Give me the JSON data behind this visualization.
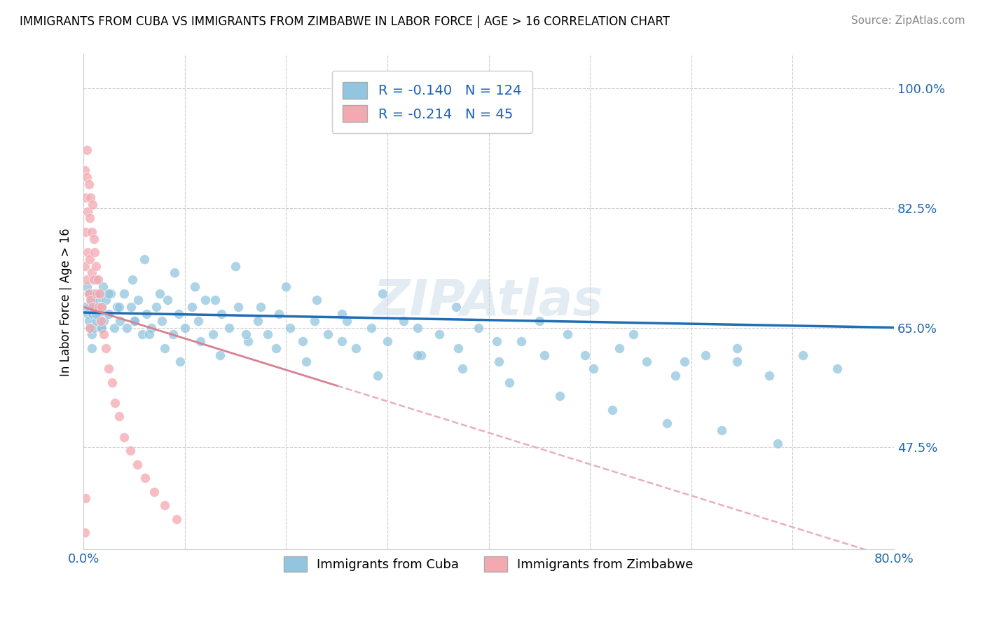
{
  "title": "IMMIGRANTS FROM CUBA VS IMMIGRANTS FROM ZIMBABWE IN LABOR FORCE | AGE > 16 CORRELATION CHART",
  "source": "Source: ZipAtlas.com",
  "ylabel": "In Labor Force | Age > 16",
  "cuba_R": -0.14,
  "cuba_N": 124,
  "zimbabwe_R": -0.214,
  "zimbabwe_N": 45,
  "cuba_color": "#92c5de",
  "zimbabwe_color": "#f4a9b0",
  "trend_cuba_color": "#1f6db5",
  "trend_zimbabwe_color": "#d88090",
  "trend_zimbabwe_dashed_color": "#e8b0bc",
  "xlim": [
    0.0,
    0.8
  ],
  "ylim": [
    0.325,
    1.05
  ],
  "yticks": [
    0.475,
    0.65,
    0.825,
    1.0
  ],
  "ytick_labels": [
    "47.5%",
    "65.0%",
    "82.5%",
    "100.0%"
  ],
  "background_color": "#ffffff",
  "watermark": "ZIPAtlas",
  "cuba_x": [
    0.002,
    0.003,
    0.004,
    0.005,
    0.005,
    0.006,
    0.007,
    0.007,
    0.008,
    0.008,
    0.009,
    0.01,
    0.01,
    0.011,
    0.012,
    0.013,
    0.014,
    0.015,
    0.016,
    0.017,
    0.018,
    0.019,
    0.02,
    0.022,
    0.025,
    0.027,
    0.03,
    0.033,
    0.036,
    0.04,
    0.043,
    0.047,
    0.05,
    0.054,
    0.058,
    0.062,
    0.067,
    0.072,
    0.077,
    0.083,
    0.088,
    0.094,
    0.1,
    0.107,
    0.113,
    0.12,
    0.128,
    0.136,
    0.144,
    0.153,
    0.162,
    0.172,
    0.182,
    0.193,
    0.204,
    0.216,
    0.228,
    0.241,
    0.255,
    0.269,
    0.284,
    0.3,
    0.316,
    0.333,
    0.351,
    0.37,
    0.39,
    0.41,
    0.432,
    0.455,
    0.478,
    0.503,
    0.529,
    0.556,
    0.584,
    0.614,
    0.645,
    0.677,
    0.71,
    0.744,
    0.048,
    0.06,
    0.075,
    0.09,
    0.11,
    0.13,
    0.15,
    0.175,
    0.2,
    0.23,
    0.26,
    0.295,
    0.33,
    0.368,
    0.408,
    0.45,
    0.495,
    0.543,
    0.593,
    0.645,
    0.008,
    0.012,
    0.018,
    0.025,
    0.035,
    0.05,
    0.065,
    0.08,
    0.095,
    0.115,
    0.135,
    0.16,
    0.19,
    0.22,
    0.255,
    0.29,
    0.33,
    0.374,
    0.42,
    0.47,
    0.522,
    0.576,
    0.63,
    0.685
  ],
  "cuba_y": [
    0.68,
    0.71,
    0.67,
    0.7,
    0.66,
    0.68,
    0.7,
    0.65,
    0.69,
    0.64,
    0.67,
    0.7,
    0.65,
    0.68,
    0.72,
    0.66,
    0.69,
    0.67,
    0.7,
    0.65,
    0.68,
    0.71,
    0.66,
    0.69,
    0.67,
    0.7,
    0.65,
    0.68,
    0.66,
    0.7,
    0.65,
    0.68,
    0.66,
    0.69,
    0.64,
    0.67,
    0.65,
    0.68,
    0.66,
    0.69,
    0.64,
    0.67,
    0.65,
    0.68,
    0.66,
    0.69,
    0.64,
    0.67,
    0.65,
    0.68,
    0.63,
    0.66,
    0.64,
    0.67,
    0.65,
    0.63,
    0.66,
    0.64,
    0.67,
    0.62,
    0.65,
    0.63,
    0.66,
    0.61,
    0.64,
    0.62,
    0.65,
    0.6,
    0.63,
    0.61,
    0.64,
    0.59,
    0.62,
    0.6,
    0.58,
    0.61,
    0.6,
    0.58,
    0.61,
    0.59,
    0.72,
    0.75,
    0.7,
    0.73,
    0.71,
    0.69,
    0.74,
    0.68,
    0.71,
    0.69,
    0.66,
    0.7,
    0.65,
    0.68,
    0.63,
    0.66,
    0.61,
    0.64,
    0.6,
    0.62,
    0.62,
    0.67,
    0.65,
    0.7,
    0.68,
    0.66,
    0.64,
    0.62,
    0.6,
    0.63,
    0.61,
    0.64,
    0.62,
    0.6,
    0.63,
    0.58,
    0.61,
    0.59,
    0.57,
    0.55,
    0.53,
    0.51,
    0.5,
    0.48
  ],
  "zimbabwe_x": [
    0.001,
    0.001,
    0.002,
    0.002,
    0.003,
    0.003,
    0.004,
    0.004,
    0.005,
    0.005,
    0.006,
    0.006,
    0.007,
    0.007,
    0.008,
    0.008,
    0.009,
    0.009,
    0.01,
    0.01,
    0.011,
    0.012,
    0.013,
    0.014,
    0.015,
    0.016,
    0.017,
    0.018,
    0.02,
    0.022,
    0.025,
    0.028,
    0.031,
    0.035,
    0.04,
    0.046,
    0.053,
    0.061,
    0.07,
    0.08,
    0.092,
    0.006,
    0.003,
    0.002,
    0.001
  ],
  "zimbabwe_y": [
    0.88,
    0.74,
    0.84,
    0.79,
    0.87,
    0.72,
    0.82,
    0.76,
    0.86,
    0.7,
    0.81,
    0.75,
    0.84,
    0.69,
    0.79,
    0.73,
    0.83,
    0.68,
    0.78,
    0.72,
    0.76,
    0.74,
    0.7,
    0.72,
    0.68,
    0.7,
    0.66,
    0.68,
    0.64,
    0.62,
    0.59,
    0.57,
    0.54,
    0.52,
    0.49,
    0.47,
    0.45,
    0.43,
    0.41,
    0.39,
    0.37,
    0.65,
    0.91,
    0.4,
    0.35
  ]
}
